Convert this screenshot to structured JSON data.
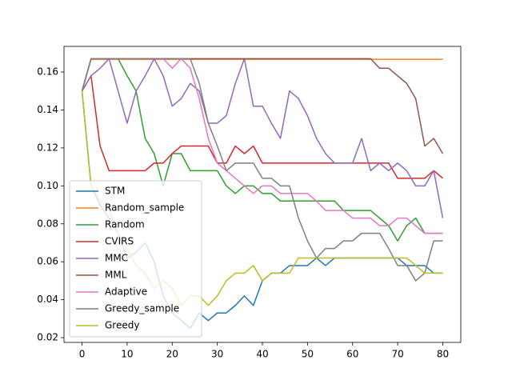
{
  "chart_data": {
    "type": "line",
    "x": [
      0,
      2,
      4,
      6,
      8,
      10,
      12,
      14,
      16,
      18,
      20,
      22,
      24,
      26,
      28,
      30,
      32,
      34,
      36,
      38,
      40,
      42,
      44,
      46,
      48,
      50,
      52,
      54,
      56,
      58,
      60,
      62,
      64,
      66,
      68,
      70,
      72,
      74,
      76,
      78,
      80
    ],
    "xlim": [
      -4,
      84
    ],
    "xticks": [
      0,
      10,
      20,
      30,
      40,
      50,
      60,
      70,
      80
    ],
    "ylim": [
      0.0175,
      0.1735
    ],
    "yticks": [
      0.02,
      0.04,
      0.06,
      0.08,
      {
        "value": 0.1,
        "label": "0.10"
      },
      0.12,
      0.14,
      0.16
    ],
    "legend": "lower left",
    "series": [
      {
        "name": "STM",
        "color": "#1f77b4",
        "values": [
          0.15,
          0.1,
          0.09,
          0.083,
          0.075,
          0.062,
          0.065,
          0.07,
          0.06,
          0.042,
          0.033,
          0.029,
          0.025,
          0.033,
          0.029,
          0.033,
          0.033,
          0.037,
          0.042,
          0.037,
          0.05,
          0.054,
          0.054,
          0.058,
          0.058,
          0.058,
          0.062,
          0.058,
          0.062,
          0.062,
          0.062,
          0.062,
          0.062,
          0.062,
          0.062,
          0.062,
          0.058,
          0.058,
          0.058,
          0.054,
          0.054
        ]
      },
      {
        "name": "Random_sample",
        "color": "#ff7f0e",
        "values": [
          0.15,
          0.1667,
          0.1667,
          0.1667,
          0.1667,
          0.1667,
          0.1667,
          0.1667,
          0.1667,
          0.1667,
          0.1667,
          0.1667,
          0.1667,
          0.1667,
          0.1667,
          0.1667,
          0.1667,
          0.1667,
          0.1667,
          0.1667,
          0.1667,
          0.1667,
          0.1667,
          0.1667,
          0.1667,
          0.1667,
          0.1667,
          0.1667,
          0.1667,
          0.1667,
          0.1667,
          0.1667,
          0.1667,
          0.1667,
          0.1667,
          0.1667,
          0.1667,
          0.1667,
          0.1667,
          0.1667,
          0.1667
        ]
      },
      {
        "name": "Random",
        "color": "#2ca02c",
        "values": [
          0.15,
          0.167,
          0.167,
          0.167,
          0.167,
          0.158,
          0.15,
          0.125,
          0.117,
          0.1,
          0.117,
          0.117,
          0.108,
          0.108,
          0.108,
          0.108,
          0.1,
          0.096,
          0.1,
          0.1,
          0.096,
          0.096,
          0.092,
          0.092,
          0.092,
          0.092,
          0.092,
          0.092,
          0.092,
          0.087,
          0.087,
          0.087,
          0.087,
          0.083,
          0.079,
          0.071,
          0.079,
          0.083,
          0.075,
          0.075,
          0.075
        ]
      },
      {
        "name": "CVIRS",
        "color": "#d62728",
        "values": [
          0.15,
          0.158,
          0.121,
          0.108,
          0.108,
          0.108,
          0.108,
          0.108,
          0.112,
          0.112,
          0.117,
          0.121,
          0.121,
          0.121,
          0.121,
          0.112,
          0.112,
          0.121,
          0.117,
          0.121,
          0.112,
          0.112,
          0.112,
          0.112,
          0.112,
          0.112,
          0.112,
          0.112,
          0.112,
          0.112,
          0.112,
          0.112,
          0.112,
          0.112,
          0.112,
          0.104,
          0.104,
          0.104,
          0.104,
          0.108,
          0.104
        ]
      },
      {
        "name": "MMC",
        "color": "#9467bd",
        "values": [
          0.15,
          0.158,
          0.162,
          0.167,
          0.15,
          0.133,
          0.15,
          0.158,
          0.167,
          0.158,
          0.142,
          0.146,
          0.154,
          0.15,
          0.133,
          0.133,
          0.137,
          0.154,
          0.167,
          0.142,
          0.142,
          0.133,
          0.125,
          0.15,
          0.146,
          0.137,
          0.125,
          0.117,
          0.112,
          0.112,
          0.112,
          0.125,
          0.108,
          0.112,
          0.108,
          0.112,
          0.108,
          0.1,
          0.1,
          0.108,
          0.083
        ]
      },
      {
        "name": "MML",
        "color": "#8c564b",
        "values": [
          0.15,
          0.167,
          0.167,
          0.167,
          0.167,
          0.167,
          0.167,
          0.167,
          0.167,
          0.167,
          0.167,
          0.167,
          0.167,
          0.167,
          0.167,
          0.167,
          0.167,
          0.167,
          0.167,
          0.167,
          0.167,
          0.167,
          0.167,
          0.167,
          0.167,
          0.167,
          0.167,
          0.167,
          0.167,
          0.167,
          0.167,
          0.167,
          0.167,
          0.162,
          0.162,
          0.158,
          0.154,
          0.146,
          0.121,
          0.125,
          0.117
        ]
      },
      {
        "name": "Adaptive",
        "color": "#e377c2",
        "values": [
          0.15,
          0.167,
          0.167,
          0.167,
          0.167,
          0.167,
          0.167,
          0.167,
          0.167,
          0.167,
          0.162,
          0.167,
          0.162,
          0.146,
          0.125,
          0.112,
          0.108,
          0.104,
          0.1,
          0.096,
          0.1,
          0.1,
          0.096,
          0.096,
          0.096,
          0.096,
          0.092,
          0.087,
          0.087,
          0.087,
          0.083,
          0.083,
          0.083,
          0.079,
          0.079,
          0.083,
          0.083,
          0.079,
          0.075,
          0.075,
          0.075
        ]
      },
      {
        "name": "Greedy_sample",
        "color": "#7f7f7f",
        "values": [
          0.15,
          0.167,
          0.167,
          0.167,
          0.167,
          0.167,
          0.167,
          0.167,
          0.167,
          0.167,
          0.167,
          0.167,
          0.167,
          0.154,
          0.133,
          0.121,
          0.108,
          0.112,
          0.112,
          0.112,
          0.104,
          0.104,
          0.1,
          0.1,
          0.083,
          0.071,
          0.062,
          0.067,
          0.067,
          0.071,
          0.071,
          0.075,
          0.075,
          0.075,
          0.067,
          0.058,
          0.058,
          0.05,
          0.054,
          0.071,
          0.071
        ]
      },
      {
        "name": "Greedy",
        "color": "#bcbd22",
        "values": [
          0.15,
          0.1,
          0.092,
          0.087,
          0.075,
          0.067,
          0.058,
          0.054,
          0.046,
          0.05,
          0.046,
          0.037,
          0.042,
          0.042,
          0.037,
          0.042,
          0.05,
          0.054,
          0.054,
          0.058,
          0.05,
          0.054,
          0.054,
          0.054,
          0.062,
          0.062,
          0.062,
          0.062,
          0.062,
          0.062,
          0.062,
          0.062,
          0.062,
          0.062,
          0.062,
          0.062,
          0.062,
          0.058,
          0.054,
          0.054,
          0.054
        ]
      }
    ]
  }
}
